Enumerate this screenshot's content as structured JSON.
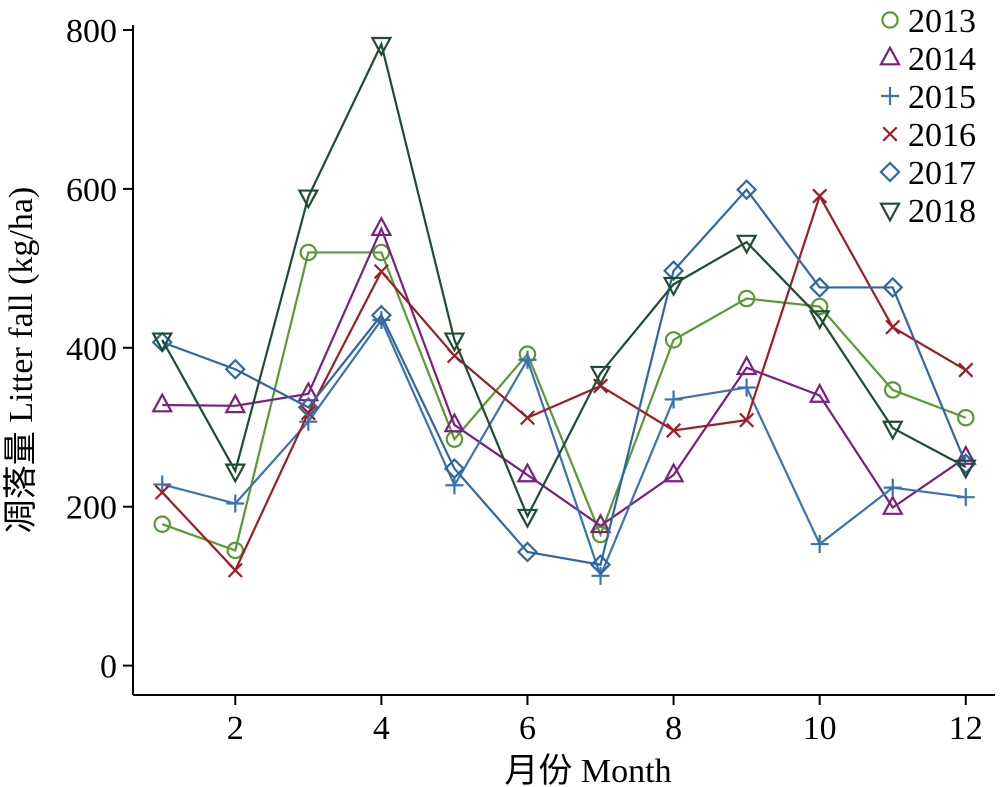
{
  "chart_data": {
    "type": "line",
    "xlabel": "月份 Month",
    "ylabel": "凋落量 Litter fall (kg/ha)",
    "xlim": [
      0.6,
      12.4
    ],
    "ylim": [
      -37,
      800
    ],
    "xticks": [
      2,
      4,
      6,
      8,
      10,
      12
    ],
    "yticks": [
      0,
      200,
      400,
      600,
      800
    ],
    "grid": false,
    "legend_position": "top-right",
    "x": [
      1,
      2,
      3,
      4,
      5,
      6,
      7,
      8,
      9,
      10,
      11,
      12
    ],
    "series": [
      {
        "name": "2013",
        "color": "#5a9a32",
        "marker": "circle",
        "values": [
          178,
          145,
          520,
          520,
          285,
          392,
          165,
          410,
          462,
          452,
          347,
          312
        ]
      },
      {
        "name": "2014",
        "color": "#7b2080",
        "marker": "triangle-up",
        "values": [
          328,
          327,
          342,
          550,
          303,
          240,
          176,
          240,
          375,
          340,
          199,
          262
        ]
      },
      {
        "name": "2015",
        "color": "#3a74b0",
        "marker": "plus",
        "values": [
          228,
          204,
          307,
          435,
          227,
          385,
          113,
          335,
          350,
          153,
          224,
          212
        ]
      },
      {
        "name": "2016",
        "color": "#a01c24",
        "marker": "x",
        "values": [
          218,
          120,
          318,
          496,
          390,
          312,
          352,
          296,
          309,
          591,
          426,
          372
        ]
      },
      {
        "name": "2017",
        "color": "#2f67a3",
        "marker": "diamond",
        "values": [
          407,
          373,
          325,
          441,
          248,
          143,
          127,
          497,
          599,
          476,
          476,
          254
        ]
      },
      {
        "name": "2018",
        "color": "#1f4d33",
        "marker": "triangle-down",
        "values": [
          410,
          245,
          590,
          782,
          410,
          188,
          368,
          480,
          533,
          438,
          299,
          250
        ]
      }
    ]
  }
}
